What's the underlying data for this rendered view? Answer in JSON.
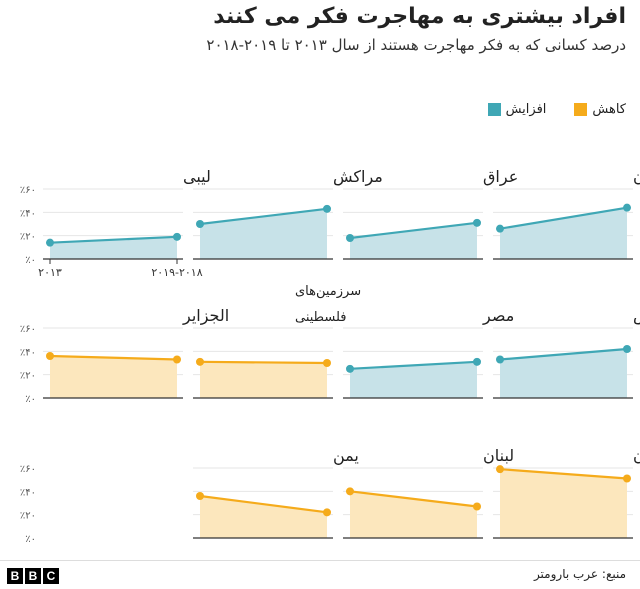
{
  "title": "افراد بیشتری به مهاجرت فکر می کنند",
  "subtitle": "درصد کسانی که به فکر مهاجرت هستند از سال ۲۰۱۳ تا ۲۰۱۹-۲۰۱۸",
  "legend": [
    {
      "label": "افزایش",
      "color": "#3fa7b5"
    },
    {
      "label": "کاهش",
      "color": "#f5ab1b"
    }
  ],
  "source": "منبع: عرب بارومتر",
  "logo": [
    "B",
    "B",
    "C"
  ],
  "colors": {
    "increase_line": "#3fa7b5",
    "increase_fill": "#c7e2e8",
    "decrease_line": "#f5ab1b",
    "decrease_fill": "#fce7bd"
  },
  "chart_data": {
    "type": "area",
    "layout": "small-multiples",
    "x": [
      "۲۰۱۳",
      "۲۰۱۹-۲۰۱۸"
    ],
    "ylim": [
      0,
      60
    ],
    "yticks": [
      "٪۰",
      "٪۲۰",
      "٪۴۰",
      "٪۶۰"
    ],
    "series": [
      {
        "name": "اردن",
        "trend": "increase",
        "values": [
          26,
          44
        ]
      },
      {
        "name": "عراق",
        "trend": "increase",
        "values": [
          18,
          31
        ]
      },
      {
        "name": "مراکش",
        "trend": "increase",
        "values": [
          30,
          43
        ]
      },
      {
        "name": "لیبی",
        "trend": "increase",
        "values": [
          14,
          19
        ]
      },
      {
        "name": "تونس",
        "trend": "increase",
        "values": [
          33,
          42
        ]
      },
      {
        "name": "مصر",
        "trend": "increase",
        "values": [
          25,
          31
        ]
      },
      {
        "name": "سرزمین‌های فلسطینی",
        "trend": "decrease",
        "values": [
          31,
          30
        ]
      },
      {
        "name": "الجزایر",
        "trend": "decrease",
        "values": [
          36,
          33
        ]
      },
      {
        "name": "سودان",
        "trend": "decrease",
        "values": [
          59,
          51
        ]
      },
      {
        "name": "لبنان",
        "trend": "decrease",
        "values": [
          40,
          27
        ]
      },
      {
        "name": "یمن",
        "trend": "decrease",
        "values": [
          36,
          22
        ]
      }
    ]
  }
}
